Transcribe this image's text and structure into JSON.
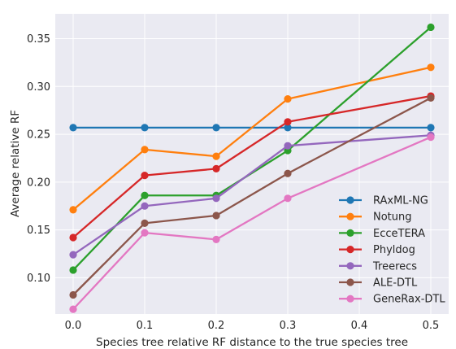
{
  "chart_data": {
    "type": "line",
    "xlabel": "Species tree relative RF distance to the true species tree",
    "ylabel": "Average relative RF",
    "x": [
      0.0,
      0.1,
      0.2,
      0.3,
      0.5
    ],
    "xlim": [
      -0.025,
      0.525
    ],
    "ylim": [
      0.062,
      0.376
    ],
    "xticks": [
      0.0,
      0.1,
      0.2,
      0.3,
      0.4,
      0.5
    ],
    "xtick_labels": [
      "0.0",
      "0.1",
      "0.2",
      "0.3",
      "0.4",
      "0.5"
    ],
    "yticks": [
      0.1,
      0.15,
      0.2,
      0.25,
      0.3,
      0.35
    ],
    "ytick_labels": [
      "0.10",
      "0.15",
      "0.20",
      "0.25",
      "0.30",
      "0.35"
    ],
    "grid": true,
    "legend_position": "lower-right",
    "background": "#eaeaf2",
    "series": [
      {
        "name": "RAxML-NG",
        "color": "#1f77b4",
        "values": [
          0.257,
          0.257,
          0.257,
          0.257,
          0.257
        ]
      },
      {
        "name": "Notung",
        "color": "#ff7f0e",
        "values": [
          0.171,
          0.234,
          0.227,
          0.287,
          0.32
        ]
      },
      {
        "name": "EcceTERA",
        "color": "#2ca02c",
        "values": [
          0.108,
          0.186,
          0.186,
          0.233,
          0.362
        ]
      },
      {
        "name": "Phyldog",
        "color": "#d62728",
        "values": [
          0.142,
          0.207,
          0.214,
          0.263,
          0.29
        ]
      },
      {
        "name": "Treerecs",
        "color": "#9467bd",
        "values": [
          0.124,
          0.175,
          0.183,
          0.238,
          0.249
        ]
      },
      {
        "name": "ALE-DTL",
        "color": "#8c564b",
        "values": [
          0.082,
          0.157,
          0.165,
          0.209,
          0.288
        ]
      },
      {
        "name": "GeneRax-DTL",
        "color": "#e377c2",
        "values": [
          0.067,
          0.147,
          0.14,
          0.183,
          0.247
        ]
      }
    ]
  }
}
